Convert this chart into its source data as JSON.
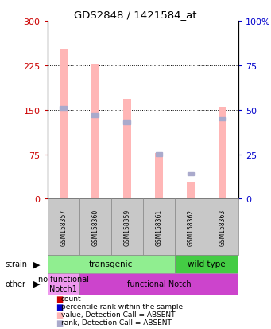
{
  "title": "GDS2848 / 1421584_at",
  "samples": [
    "GSM158357",
    "GSM158360",
    "GSM158359",
    "GSM158361",
    "GSM158362",
    "GSM158363"
  ],
  "bar_values": [
    253,
    228,
    168,
    77,
    28,
    155
  ],
  "rank_values": [
    51,
    47,
    43,
    25,
    14,
    45
  ],
  "bar_color_absent": "#FFB6B6",
  "rank_color_absent": "#AAAACC",
  "ylim_left": [
    0,
    300
  ],
  "ylim_right": [
    0,
    100
  ],
  "yticks_left": [
    0,
    75,
    150,
    225,
    300
  ],
  "yticks_right": [
    0,
    25,
    50,
    75,
    100
  ],
  "ytick_labels_left": [
    "0",
    "75",
    "150",
    "225",
    "300"
  ],
  "ytick_labels_right": [
    "0",
    "25",
    "50",
    "75",
    "100%"
  ],
  "left_axis_color": "#CC0000",
  "right_axis_color": "#0000CC",
  "strain_labels": [
    {
      "label": "transgenic",
      "span": [
        0,
        4
      ],
      "color": "#90EE90"
    },
    {
      "label": "wild type",
      "span": [
        4,
        6
      ],
      "color": "#44CC44"
    }
  ],
  "other_labels": [
    {
      "label": "no functional\nNotch1",
      "span": [
        0,
        1
      ],
      "color": "#EE99EE"
    },
    {
      "label": "functional Notch",
      "span": [
        1,
        6
      ],
      "color": "#CC44CC"
    }
  ],
  "legend_items": [
    {
      "color": "#CC0000",
      "label": "count"
    },
    {
      "color": "#0000CC",
      "label": "percentile rank within the sample"
    },
    {
      "color": "#FFB6B6",
      "label": "value, Detection Call = ABSENT"
    },
    {
      "color": "#AAAACC",
      "label": "rank, Detection Call = ABSENT"
    }
  ],
  "bar_width": 0.25
}
